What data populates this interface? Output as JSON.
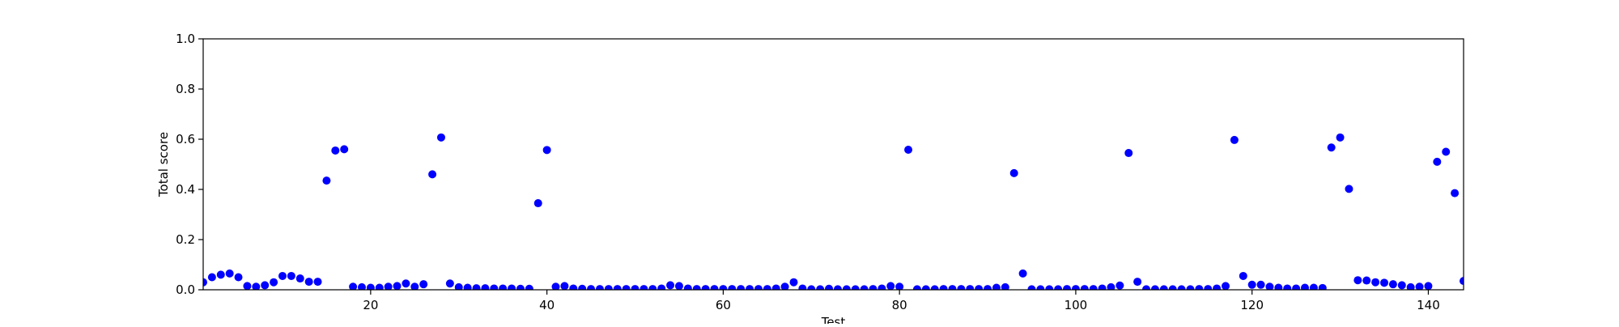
{
  "chart_data": {
    "type": "scatter",
    "title": "",
    "xlabel": "Test",
    "ylabel": "Total score",
    "xlim": [
      1,
      144
    ],
    "ylim": [
      0.0,
      1.0
    ],
    "xticks": [
      20,
      40,
      60,
      80,
      100,
      120,
      140
    ],
    "yticks": [
      0.0,
      0.2,
      0.4,
      0.6,
      0.8,
      1.0
    ],
    "ytick_labels": [
      "0.0",
      "0.2",
      "0.4",
      "0.6",
      "0.8",
      "1.0"
    ],
    "xtick_labels": [
      "20",
      "40",
      "60",
      "80",
      "100",
      "120",
      "140"
    ],
    "grid": false,
    "marker_color": "#0000ff",
    "x": [
      1,
      2,
      3,
      4,
      5,
      6,
      7,
      8,
      9,
      10,
      11,
      12,
      13,
      14,
      15,
      16,
      17,
      18,
      19,
      20,
      21,
      22,
      23,
      24,
      25,
      26,
      27,
      28,
      29,
      30,
      31,
      32,
      33,
      34,
      35,
      36,
      37,
      38,
      39,
      40,
      41,
      42,
      43,
      44,
      45,
      46,
      47,
      48,
      49,
      50,
      51,
      52,
      53,
      54,
      55,
      56,
      57,
      58,
      59,
      60,
      61,
      62,
      63,
      64,
      65,
      66,
      67,
      68,
      69,
      70,
      71,
      72,
      73,
      74,
      75,
      76,
      77,
      78,
      79,
      80,
      81,
      82,
      83,
      84,
      85,
      86,
      87,
      88,
      89,
      90,
      91,
      92,
      93,
      94,
      95,
      96,
      97,
      98,
      99,
      100,
      101,
      102,
      103,
      104,
      105,
      106,
      107,
      108,
      109,
      110,
      111,
      112,
      113,
      114,
      115,
      116,
      117,
      118,
      119,
      120,
      121,
      122,
      123,
      124,
      125,
      126,
      127,
      128,
      129,
      130,
      131,
      132,
      133,
      134,
      135,
      136,
      137,
      138,
      139,
      140,
      141,
      142,
      143,
      144
    ],
    "y": [
      0.03,
      0.05,
      0.06,
      0.065,
      0.05,
      0.015,
      0.012,
      0.018,
      0.03,
      0.055,
      0.055,
      0.045,
      0.032,
      0.032,
      0.435,
      0.555,
      0.56,
      0.012,
      0.01,
      0.008,
      0.008,
      0.012,
      0.015,
      0.025,
      0.012,
      0.022,
      0.46,
      0.607,
      0.025,
      0.01,
      0.008,
      0.006,
      0.006,
      0.005,
      0.005,
      0.005,
      0.004,
      0.004,
      0.345,
      0.557,
      0.012,
      0.015,
      0.005,
      0.004,
      0.003,
      0.003,
      0.003,
      0.003,
      0.003,
      0.003,
      0.003,
      0.003,
      0.005,
      0.018,
      0.015,
      0.005,
      0.003,
      0.003,
      0.003,
      0.003,
      0.003,
      0.003,
      0.003,
      0.003,
      0.003,
      0.005,
      0.012,
      0.03,
      0.005,
      0.002,
      0.002,
      0.004,
      0.002,
      0.002,
      0.002,
      0.002,
      0.003,
      0.005,
      0.015,
      0.012,
      0.558,
      0.002,
      0.002,
      0.002,
      0.003,
      0.003,
      0.003,
      0.003,
      0.003,
      0.003,
      0.008,
      0.01,
      0.465,
      0.065,
      0.002,
      0.002,
      0.002,
      0.002,
      0.003,
      0.003,
      0.003,
      0.003,
      0.005,
      0.01,
      0.017,
      0.545,
      0.032,
      0.002,
      0.002,
      0.002,
      0.002,
      0.002,
      0.002,
      0.003,
      0.003,
      0.005,
      0.015,
      0.597,
      0.055,
      0.02,
      0.02,
      0.012,
      0.008,
      0.005,
      0.005,
      0.008,
      0.008,
      0.007,
      0.567,
      0.607,
      0.402,
      0.038,
      0.037,
      0.03,
      0.028,
      0.022,
      0.018,
      0.01,
      0.012,
      0.015,
      0.51,
      0.55,
      0.385,
      0.035
    ]
  }
}
